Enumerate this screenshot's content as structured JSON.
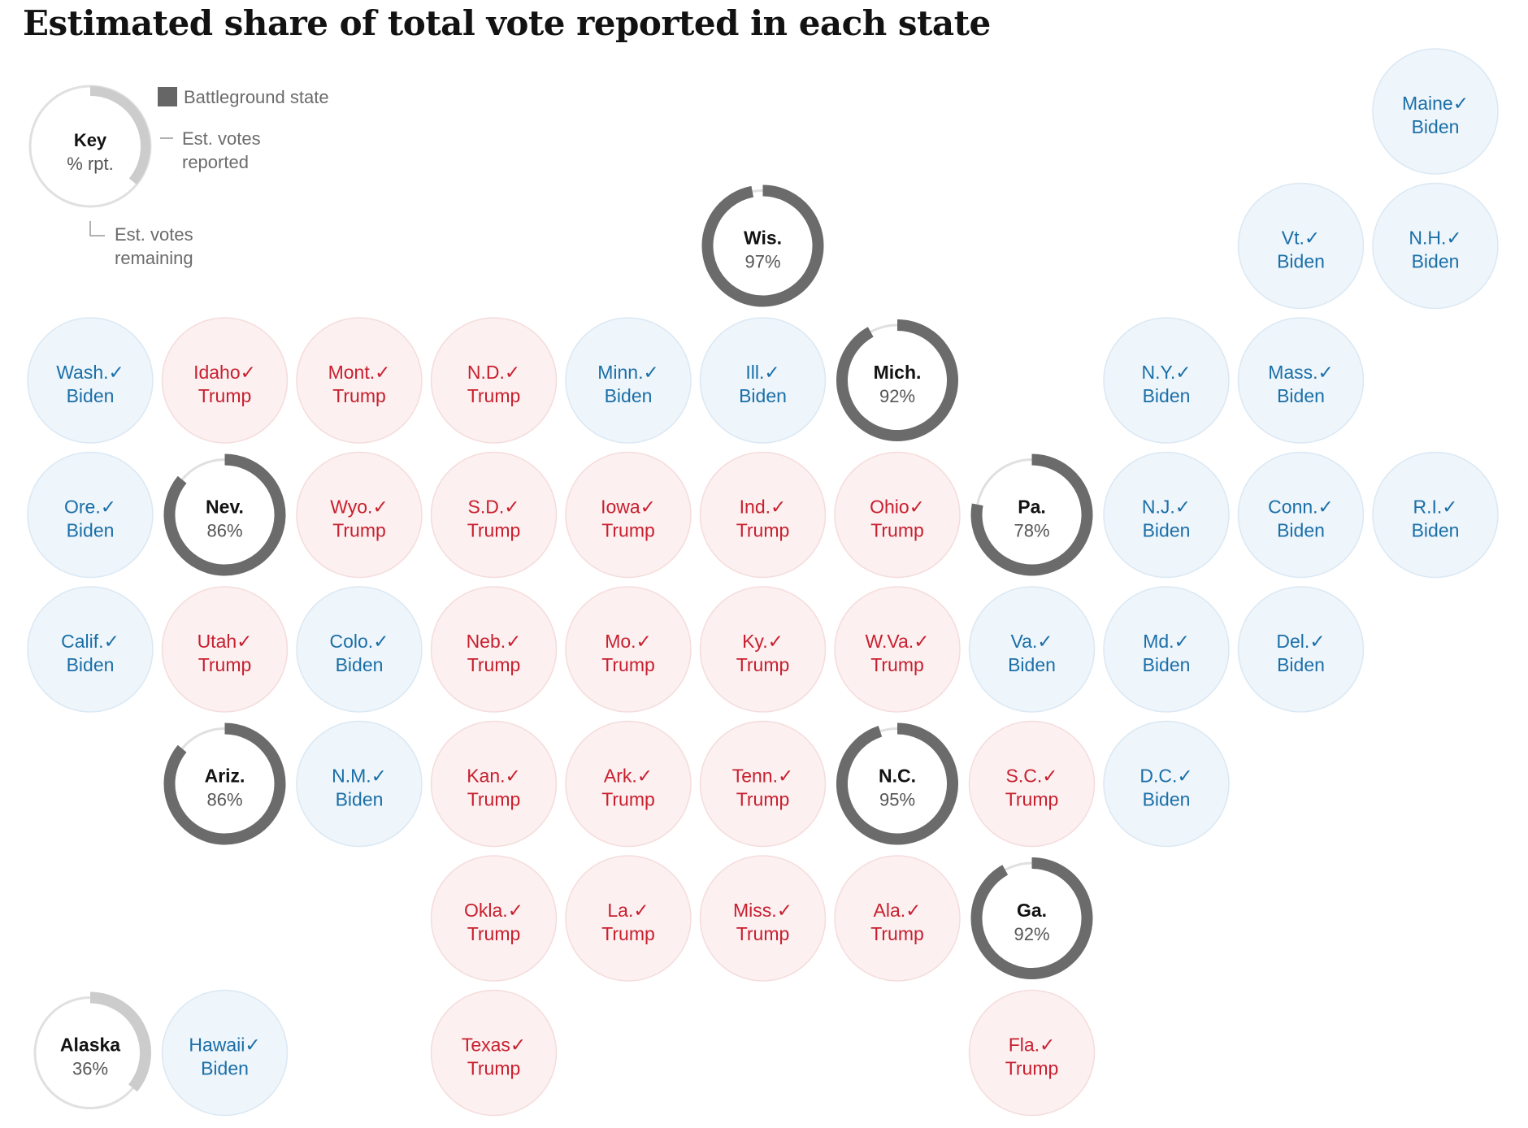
{
  "title": "Estimated share of total vote reported in each state",
  "legend": {
    "key_label": "Key",
    "key_sub": "% rpt.",
    "battleground": "Battleground state",
    "reported_line1": "Est. votes",
    "reported_line2": "reported",
    "remaining_line1": "Est. votes",
    "remaining_line2": "remaining"
  },
  "colors": {
    "biden_text": "#1a6fa8",
    "biden_fill": "#eef5fb",
    "biden_stroke": "#dbe8f3",
    "trump_text": "#c8202f",
    "trump_fill": "#fcf0f0",
    "trump_stroke": "#f5dcdc",
    "battleground_ring": "#6b6b6b",
    "nonbattleground_ring": "#cccccc",
    "ring_track": "#e0e0e0"
  },
  "check": "✓",
  "chart_data": {
    "type": "tile-grid",
    "title": "Estimated share of total vote reported in each state",
    "states": [
      {
        "label": "Maine",
        "winner": "Biden",
        "called": true,
        "col": 10,
        "row": 0
      },
      {
        "label": "Wis.",
        "battleground": true,
        "reported_pct": 97,
        "pct_label": "97%",
        "col": 5,
        "row": 1
      },
      {
        "label": "Vt.",
        "winner": "Biden",
        "called": true,
        "col": 9,
        "row": 1
      },
      {
        "label": "N.H.",
        "winner": "Biden",
        "called": true,
        "col": 10,
        "row": 1
      },
      {
        "label": "Wash.",
        "winner": "Biden",
        "called": true,
        "col": 0,
        "row": 2
      },
      {
        "label": "Idaho",
        "winner": "Trump",
        "called": true,
        "col": 1,
        "row": 2
      },
      {
        "label": "Mont.",
        "winner": "Trump",
        "called": true,
        "col": 2,
        "row": 2
      },
      {
        "label": "N.D.",
        "winner": "Trump",
        "called": true,
        "col": 3,
        "row": 2
      },
      {
        "label": "Minn.",
        "winner": "Biden",
        "called": true,
        "col": 4,
        "row": 2
      },
      {
        "label": "Ill.",
        "winner": "Biden",
        "called": true,
        "col": 5,
        "row": 2
      },
      {
        "label": "Mich.",
        "battleground": true,
        "reported_pct": 92,
        "pct_label": "92%",
        "col": 6,
        "row": 2
      },
      {
        "label": "N.Y.",
        "winner": "Biden",
        "called": true,
        "col": 8,
        "row": 2
      },
      {
        "label": "Mass.",
        "winner": "Biden",
        "called": true,
        "col": 9,
        "row": 2
      },
      {
        "label": "Ore.",
        "winner": "Biden",
        "called": true,
        "col": 0,
        "row": 3
      },
      {
        "label": "Nev.",
        "battleground": true,
        "reported_pct": 86,
        "pct_label": "86%",
        "col": 1,
        "row": 3
      },
      {
        "label": "Wyo.",
        "winner": "Trump",
        "called": true,
        "col": 2,
        "row": 3
      },
      {
        "label": "S.D.",
        "winner": "Trump",
        "called": true,
        "col": 3,
        "row": 3
      },
      {
        "label": "Iowa",
        "winner": "Trump",
        "called": true,
        "col": 4,
        "row": 3
      },
      {
        "label": "Ind.",
        "winner": "Trump",
        "called": true,
        "col": 5,
        "row": 3
      },
      {
        "label": "Ohio",
        "winner": "Trump",
        "called": true,
        "col": 6,
        "row": 3
      },
      {
        "label": "Pa.",
        "battleground": true,
        "reported_pct": 78,
        "pct_label": "78%",
        "col": 7,
        "row": 3
      },
      {
        "label": "N.J.",
        "winner": "Biden",
        "called": true,
        "col": 8,
        "row": 3
      },
      {
        "label": "Conn.",
        "winner": "Biden",
        "called": true,
        "col": 9,
        "row": 3
      },
      {
        "label": "R.I.",
        "winner": "Biden",
        "called": true,
        "col": 10,
        "row": 3
      },
      {
        "label": "Calif.",
        "winner": "Biden",
        "called": true,
        "col": 0,
        "row": 4
      },
      {
        "label": "Utah",
        "winner": "Trump",
        "called": true,
        "col": 1,
        "row": 4
      },
      {
        "label": "Colo.",
        "winner": "Biden",
        "called": true,
        "col": 2,
        "row": 4
      },
      {
        "label": "Neb.",
        "winner": "Trump",
        "called": true,
        "col": 3,
        "row": 4
      },
      {
        "label": "Mo.",
        "winner": "Trump",
        "called": true,
        "col": 4,
        "row": 4
      },
      {
        "label": "Ky.",
        "winner": "Trump",
        "called": true,
        "col": 5,
        "row": 4
      },
      {
        "label": "W.Va.",
        "winner": "Trump",
        "called": true,
        "col": 6,
        "row": 4
      },
      {
        "label": "Va.",
        "winner": "Biden",
        "called": true,
        "col": 7,
        "row": 4
      },
      {
        "label": "Md.",
        "winner": "Biden",
        "called": true,
        "col": 8,
        "row": 4
      },
      {
        "label": "Del.",
        "winner": "Biden",
        "called": true,
        "col": 9,
        "row": 4
      },
      {
        "label": "Ariz.",
        "battleground": true,
        "reported_pct": 86,
        "pct_label": "86%",
        "col": 1,
        "row": 5
      },
      {
        "label": "N.M.",
        "winner": "Biden",
        "called": true,
        "col": 2,
        "row": 5
      },
      {
        "label": "Kan.",
        "winner": "Trump",
        "called": true,
        "col": 3,
        "row": 5
      },
      {
        "label": "Ark.",
        "winner": "Trump",
        "called": true,
        "col": 4,
        "row": 5
      },
      {
        "label": "Tenn.",
        "winner": "Trump",
        "called": true,
        "col": 5,
        "row": 5
      },
      {
        "label": "N.C.",
        "battleground": true,
        "reported_pct": 95,
        "pct_label": "95%",
        "col": 6,
        "row": 5
      },
      {
        "label": "S.C.",
        "winner": "Trump",
        "called": true,
        "col": 7,
        "row": 5
      },
      {
        "label": "D.C.",
        "winner": "Biden",
        "called": true,
        "col": 8,
        "row": 5
      },
      {
        "label": "Okla.",
        "winner": "Trump",
        "called": true,
        "col": 3,
        "row": 6
      },
      {
        "label": "La.",
        "winner": "Trump",
        "called": true,
        "col": 4,
        "row": 6
      },
      {
        "label": "Miss.",
        "winner": "Trump",
        "called": true,
        "col": 5,
        "row": 6
      },
      {
        "label": "Ala.",
        "winner": "Trump",
        "called": true,
        "col": 6,
        "row": 6
      },
      {
        "label": "Ga.",
        "battleground": true,
        "reported_pct": 92,
        "pct_label": "92%",
        "col": 7,
        "row": 6
      },
      {
        "label": "Alaska",
        "battleground": false,
        "reported_pct": 36,
        "pct_label": "36%",
        "col": 0,
        "row": 7
      },
      {
        "label": "Hawaii",
        "winner": "Biden",
        "called": true,
        "col": 1,
        "row": 7
      },
      {
        "label": "Texas",
        "winner": "Trump",
        "called": true,
        "col": 3,
        "row": 7
      },
      {
        "label": "Fla.",
        "winner": "Trump",
        "called": true,
        "col": 7,
        "row": 7
      }
    ]
  }
}
